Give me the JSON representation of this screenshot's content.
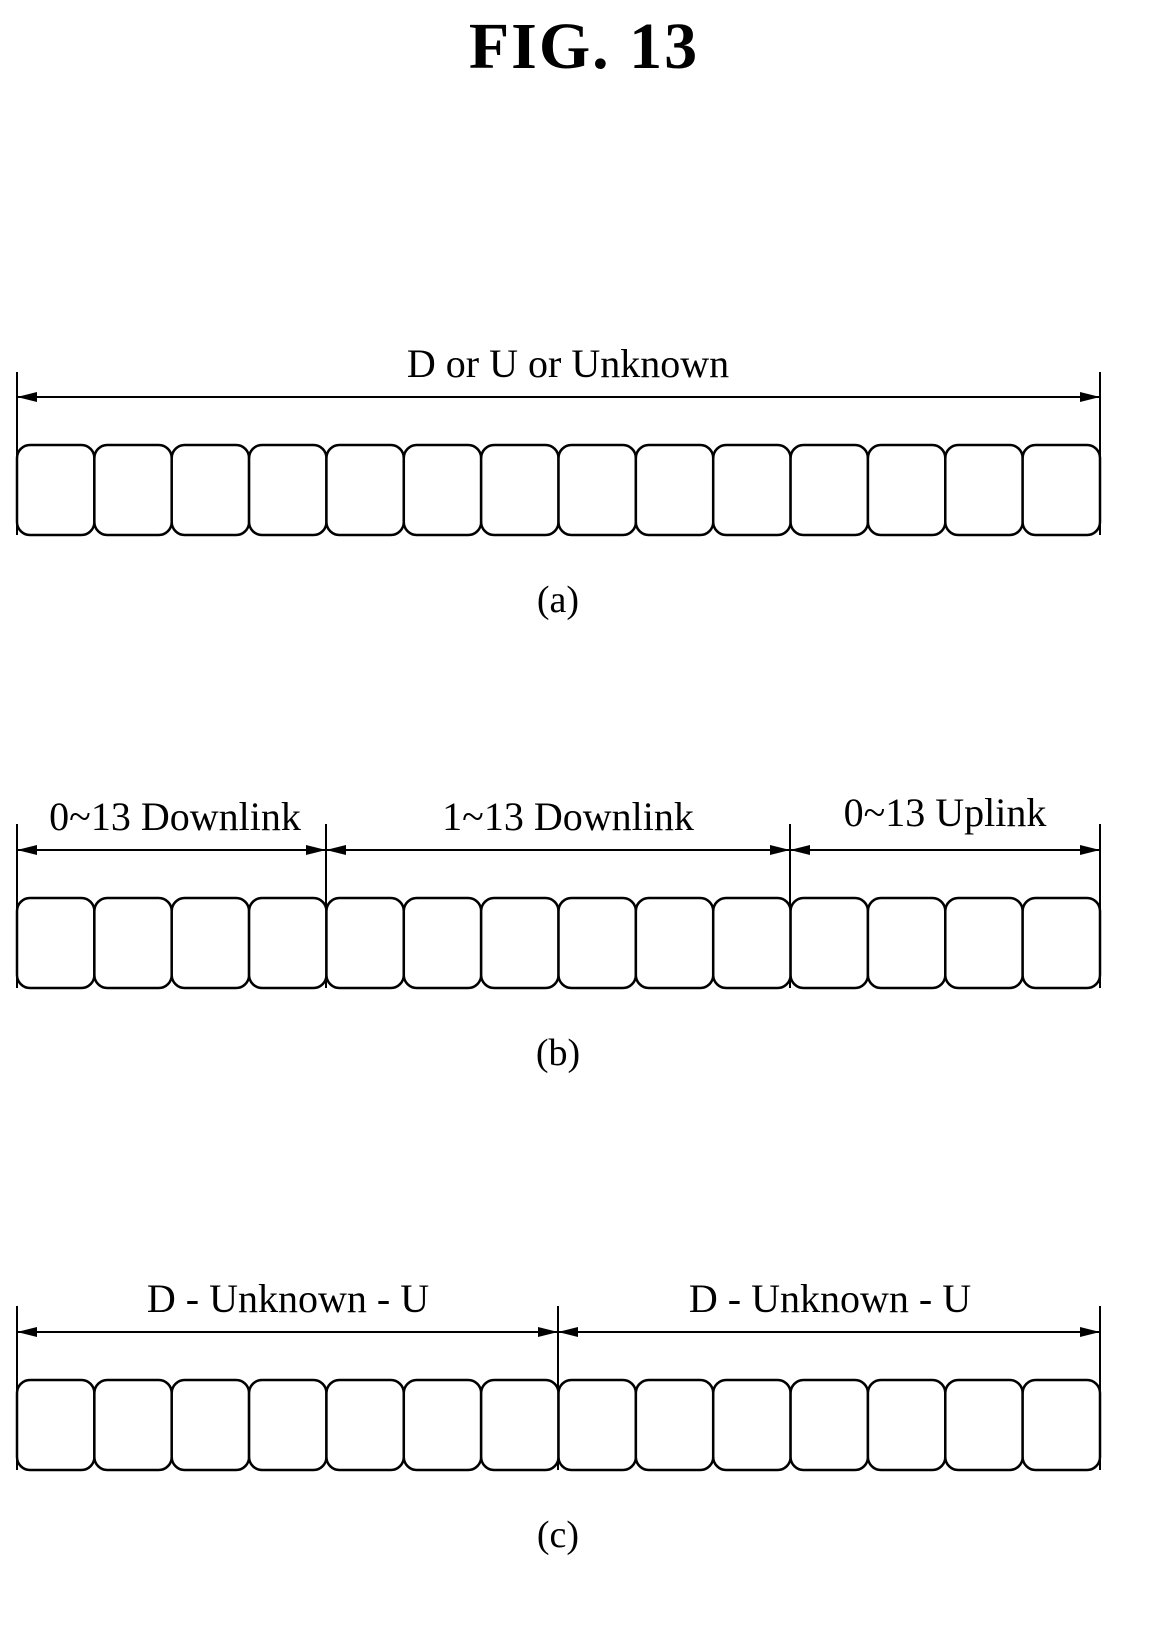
{
  "figure": {
    "title": "FIG. 13",
    "slots_per_row": 14,
    "panels": [
      {
        "caption": "(a)",
        "segments": [
          {
            "label": "D or U or Unknown",
            "slots": 14
          }
        ]
      },
      {
        "caption": "(b)",
        "segments": [
          {
            "label": "0~13 Downlink",
            "slots": 4
          },
          {
            "label": "1~13 Downlink",
            "slots": 6
          },
          {
            "label": "0~13 Uplink",
            "slots": 4
          }
        ]
      },
      {
        "caption": "(c)",
        "segments": [
          {
            "label": "D - Unknown - U",
            "slots": 7
          },
          {
            "label": "D - Unknown - U",
            "slots": 7
          }
        ]
      }
    ]
  }
}
